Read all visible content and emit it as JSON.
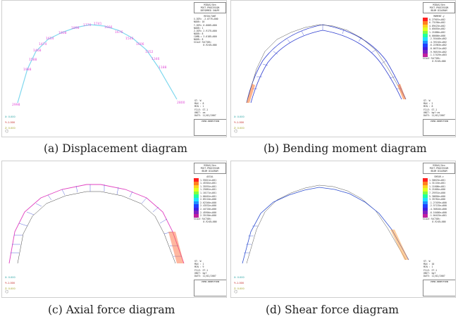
{
  "captions": {
    "a": "(a) Displacement diagram",
    "b": "(b) Bending moment diagram",
    "c": "(c) Axial force diagram",
    "d": "(d) Shear force diagram"
  },
  "colors": {
    "arch_cyan": "#7fd8ee",
    "labels_pink": "#e04fd8",
    "moment_blue": "#2f3fd0",
    "axial_pink": "#e040c0",
    "shear_blue": "#3050d0"
  },
  "panels": {
    "a": {
      "header": [
        "MIDAS/Gen",
        "POST-PROCESSOR",
        "DEFORMED SHAPE"
      ],
      "legend_title": "RESULTANT",
      "values": [
        "X-DIR= -2.077E+000",
        "NODE= 10",
        "Y-DIR= 0.000E+000",
        "NODE= 1",
        "Z-DIR= 2.917E+000",
        "NODE= 8",
        "COMB.= 3.618E+000",
        "NODE= 8"
      ],
      "scale": "SCALE FACTOR=",
      "scale_val": "8.924E+000",
      "info": [
        "ST: W",
        "MAX : 8",
        "MIN : 1",
        "FILE: ST-1",
        "UNIT: cm",
        "DATE: 11/02/2007"
      ],
      "vdir": "VIEW-DIRECTION",
      "vx": "X: 0.000",
      "vy": "Y:-1.000",
      "vz": "Z: 0.000"
    },
    "b": {
      "header": [
        "MIDAS/Gen",
        "POST-PROCESSOR",
        "BEAM DIAGRAM"
      ],
      "legend_title": "MOMENT-y",
      "values": [
        "8.27907e+002",
        "6.73190e+002",
        "4.89423e+002",
        "3.05655e+002",
        "1.21888e+002",
        "0.00000e+000",
        "-2.55448e+002",
        "-4.39216e+002",
        "-6.22983e+002",
        "-8.06751e+002",
        "-9.90519e+002",
        "-1.17429e+003"
      ],
      "scale": "SCALE FACTOR=",
      "scale_val": "8.924E+000",
      "info": [
        "ST: W",
        "MAX : 2",
        "MIN : 8",
        "FILE: ST-1",
        "UNIT: kgf·cm",
        "DATE: 11/02/2007"
      ],
      "vdir": "VIEW-DIRECTION",
      "vx": "X: 0.000",
      "vy": "Y:-1.000",
      "vz": "Z: 0.000"
    },
    "c": {
      "header": [
        "MIDAS/Gen",
        "POST-PROCESSOR",
        "BEAM DIAGRAM"
      ],
      "legend_title": "AXIAL",
      "values": [
        "1.55011e+001",
        "1.45301e+001",
        "1.35591e+001",
        "1.25881e+001",
        "1.16171e+001",
        "1.06461e+001",
        "2.85110e+000",
        "2.62346e+000",
        "2.43532e+000",
        "2.44718e+000",
        "2.45904e+000",
        "2.35150e+000"
      ],
      "scale": "SCALE FACTOR=",
      "scale_val": "8.924E+000",
      "info": [
        "ST: W",
        "MAX : 1",
        "MIN : 9",
        "FILE: ST-1",
        "UNIT: kgf",
        "DATE: 11/02/2007"
      ],
      "vdir": "VIEW-DIRECTION",
      "vx": "X: 0.000",
      "vy": "Y:-1.000",
      "vz": "Z: 0.000"
    },
    "d": {
      "header": [
        "MIDAS/Gen",
        "POST-PROCESSOR",
        "BEAM DIAGRAM"
      ],
      "legend_title": "SHEAR-z",
      "values": [
        "1.50623e+001",
        "1.31116e+001",
        "1.11608e+001",
        "9.21005e+000",
        "7.25931e+000",
        "5.30856e+000",
        "3.35782e+000",
        "-1.27459e+000",
        "-2.57135e+000",
        "-4.36810e+000",
        "-6.16486e+000",
        "-1.04425e+001"
      ],
      "scale": "SCALE FACTOR=",
      "scale_val": "8.924E+000",
      "info": [
        "ST: W",
        "MAX : 10",
        "MIN : 1",
        "FILE: ST-1",
        "UNIT: kgf",
        "DATE: 11/02/2007"
      ],
      "vdir": "VIEW-DIRECTION",
      "vx": "X: 0.000",
      "vy": "Y:-1.000",
      "vz": "Z: 0.000"
    }
  },
  "legend_colors": [
    "#ff2020",
    "#ff8020",
    "#ffd020",
    "#e0ff20",
    "#80ff40",
    "#20ffa0",
    "#20e0ff",
    "#2090ff",
    "#2040ff",
    "#4020e0",
    "#8020c0",
    "#c020a0"
  ]
}
